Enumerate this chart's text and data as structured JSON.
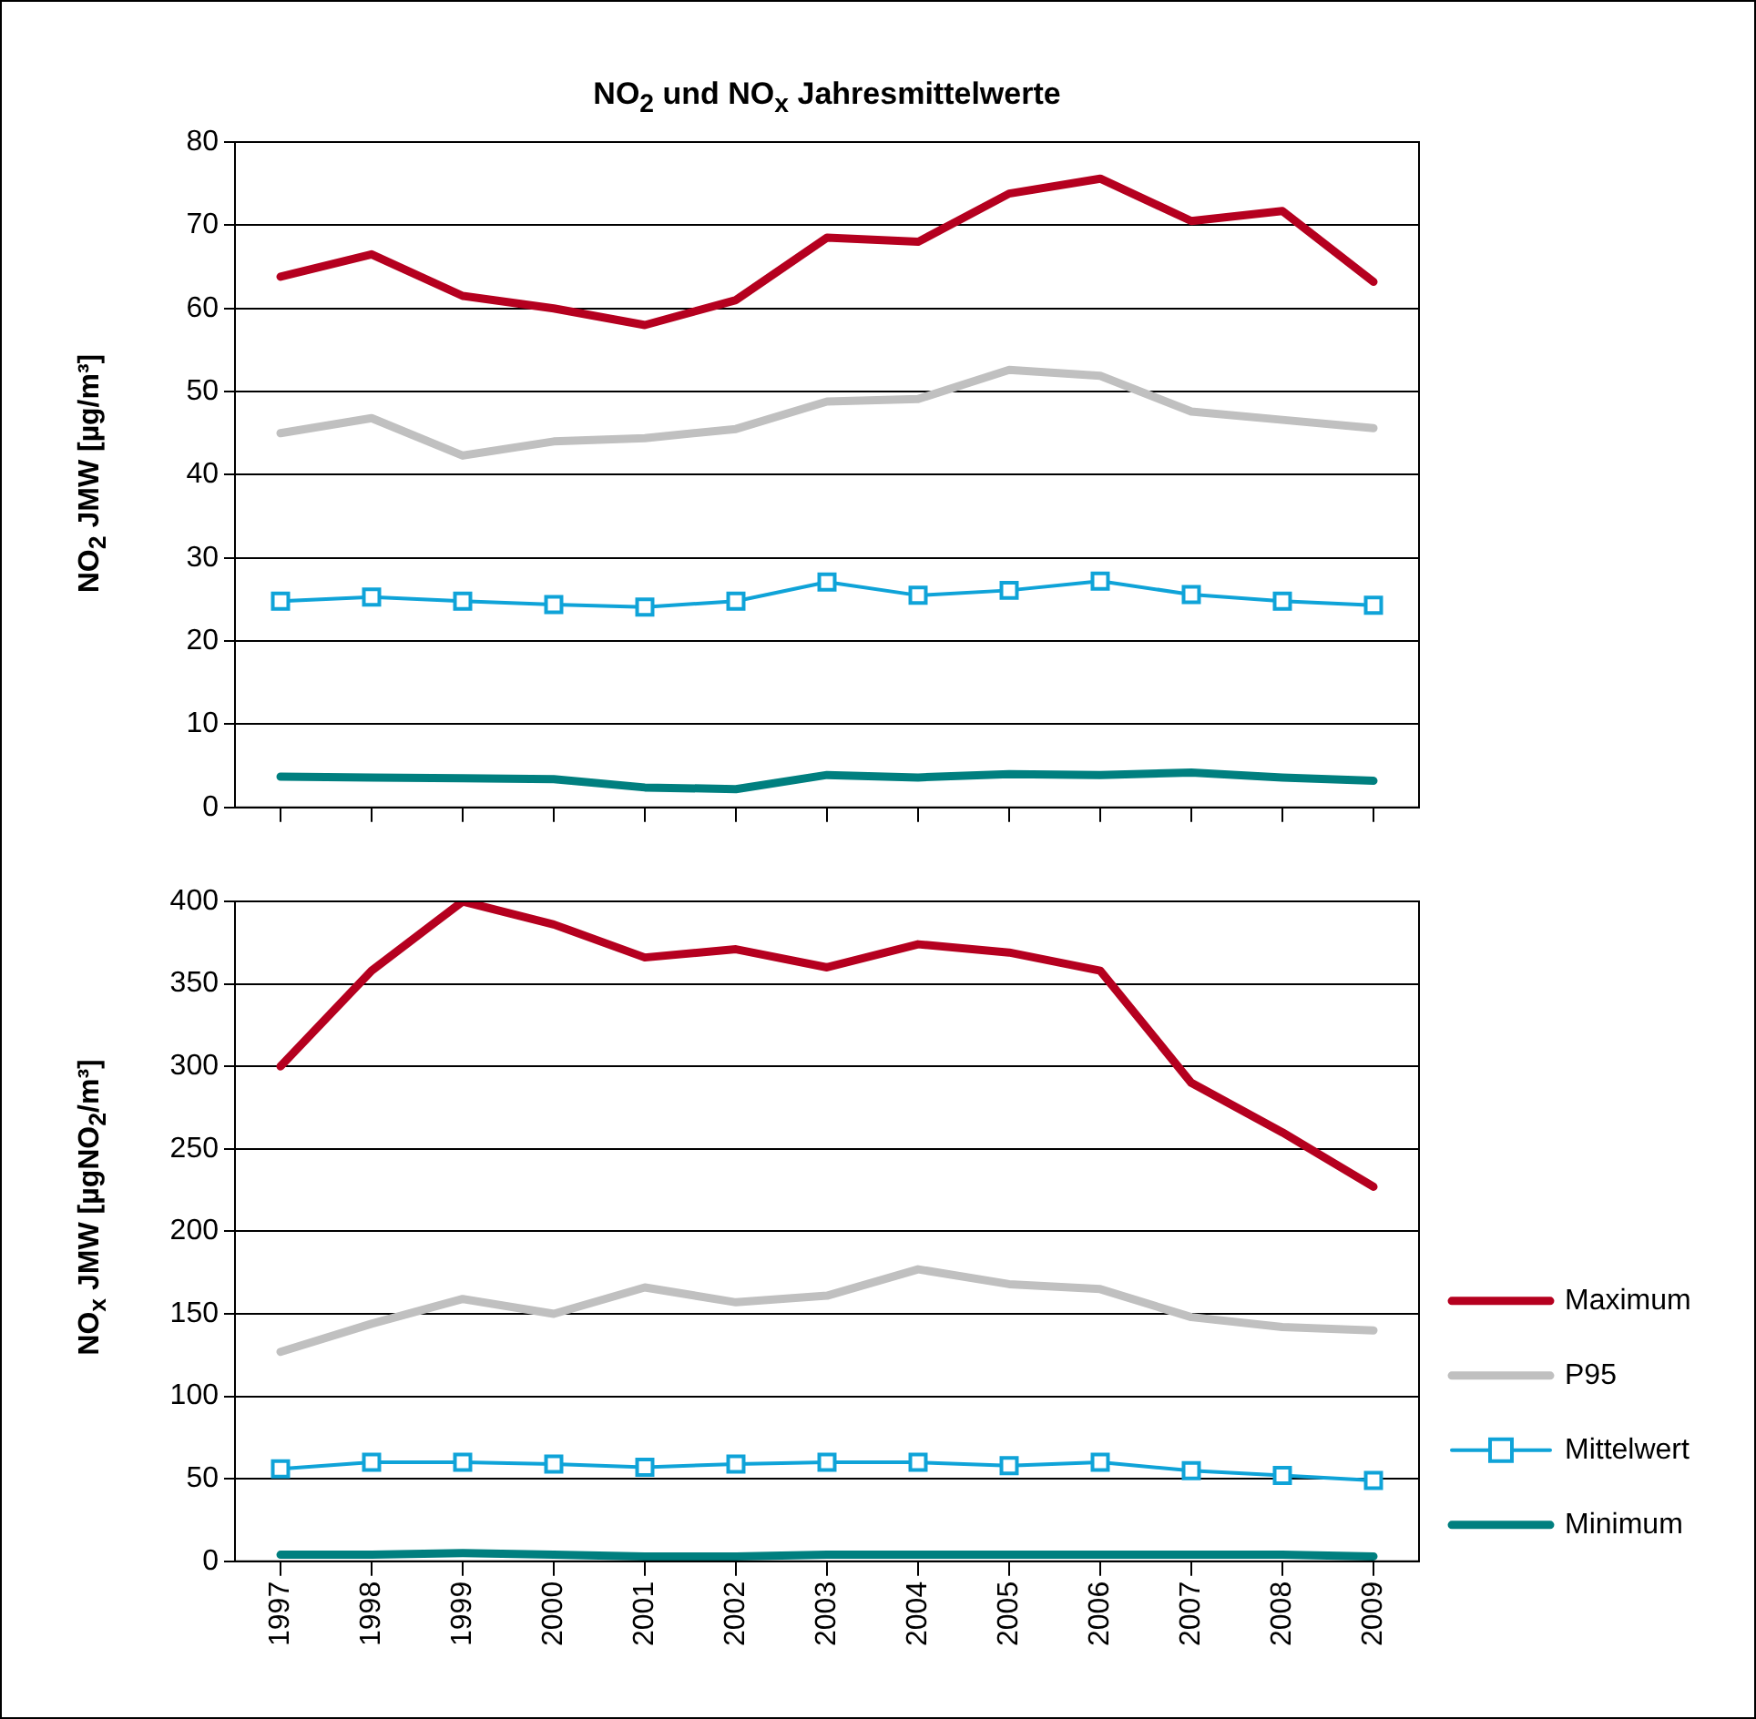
{
  "chart_data": [
    {
      "type": "line",
      "title": "NO$_{2}$ und NO$_{x}$ Jahresmittelwerte",
      "ylabel": "NO$_{2}$ JMW  [µg/m³]",
      "categories": [
        "1997",
        "1998",
        "1999",
        "2000",
        "2001",
        "2002",
        "2003",
        "2004",
        "2005",
        "2006",
        "2007",
        "2008",
        "2009"
      ],
      "ylim": [
        0,
        80
      ],
      "yticks": [
        0,
        10,
        20,
        30,
        40,
        50,
        60,
        70,
        80
      ],
      "grid": "y",
      "tick_labels": "y",
      "legend": false,
      "series": [
        {
          "color": "#b5001f",
          "values": [
            63.8,
            66.5,
            61.5,
            60,
            58,
            61,
            68.5,
            68,
            73.8,
            75.6,
            70.5,
            71.7,
            63.2
          ]
        },
        {
          "color": "#c0c0c0",
          "values": [
            45,
            46.8,
            42.3,
            44,
            44.4,
            45.5,
            48.8,
            49.1,
            52.6,
            51.9,
            47.6,
            46.6,
            45.6
          ]
        },
        {
          "color": "#0fa3d8",
          "marker": "square",
          "values": [
            24.8,
            25.3,
            24.8,
            24.4,
            24.1,
            24.8,
            27.1,
            25.5,
            26.1,
            27.2,
            25.6,
            24.8,
            24.3
          ]
        },
        {
          "color": "#007f7f",
          "values": [
            3.7,
            3.6,
            3.5,
            3.4,
            2.4,
            2.2,
            3.9,
            3.6,
            4.0,
            3.9,
            4.2,
            3.6,
            3.2
          ]
        }
      ]
    },
    {
      "type": "line",
      "ylabel": "NO$_{x}$ JMW  [µgNO$_{2}$/m³]",
      "categories": [
        "1997",
        "1998",
        "1999",
        "2000",
        "2001",
        "2002",
        "2003",
        "2004",
        "2005",
        "2006",
        "2007",
        "2008",
        "2009"
      ],
      "ylim": [
        0,
        400
      ],
      "yticks": [
        0,
        50,
        100,
        150,
        200,
        250,
        300,
        350,
        400
      ],
      "grid": "y",
      "legend": "right",
      "series": [
        {
          "name": "Maximum",
          "color": "#b5001f",
          "values": [
            300,
            358,
            400,
            386,
            366,
            371,
            360,
            374,
            369,
            358,
            290,
            260,
            227
          ]
        },
        {
          "name": "P95",
          "color": "#c0c0c0",
          "values": [
            127,
            144,
            159,
            150,
            166,
            157,
            161,
            177,
            168,
            165,
            148,
            142,
            140
          ]
        },
        {
          "name": "Mittelwert",
          "color": "#0fa3d8",
          "marker": "square",
          "values": [
            56,
            60,
            60,
            59,
            57,
            59,
            60,
            60,
            58,
            60,
            55,
            52,
            49
          ]
        },
        {
          "name": "Minimum",
          "color": "#007f7f",
          "values": [
            4,
            4,
            5,
            4,
            3,
            3,
            4,
            4,
            4,
            4,
            4,
            4,
            3
          ]
        }
      ]
    }
  ]
}
